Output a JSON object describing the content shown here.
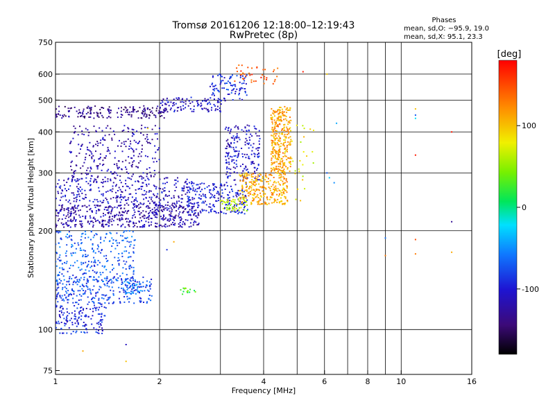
{
  "chart_data": {
    "type": "scatter",
    "title": "Tromsø 20161206 12:18:00–12:19:43",
    "subtitle": "RwPretec (8p)",
    "xlabel": "Frequency [MHz]",
    "ylabel": "Stationary phase Virtual Height [km]",
    "xscale": "log2",
    "yscale": "log",
    "xlim": [
      1,
      16
    ],
    "ylim": [
      73,
      750
    ],
    "xticks": [
      1,
      2,
      4,
      6,
      8,
      10,
      16
    ],
    "xgrid": [
      2,
      3,
      4,
      5,
      6,
      7,
      8,
      9,
      10
    ],
    "yticks": [
      75,
      100,
      200,
      300,
      400,
      500,
      600,
      750
    ],
    "ygrid": [
      100,
      200,
      300,
      400,
      500,
      600
    ],
    "grid": true,
    "phases_box": {
      "heading": "Phases",
      "line_o": "mean, sd,O: −95.9, 19.0",
      "line_x": "mean, sd,X:  95.1, 23.3"
    },
    "colorbar": {
      "label": "[deg]",
      "range": [
        -180,
        180
      ],
      "ticks": [
        100,
        0,
        -100
      ]
    },
    "clusters": [
      {
        "name": "",
        "phase": -135,
        "n": 180,
        "x": [
          1.0,
          2.1
        ],
        "y": [
          440,
          480
        ]
      },
      {
        "name": "",
        "phase": -110,
        "n": 110,
        "x": [
          2.0,
          3.1
        ],
        "y": [
          460,
          510
        ]
      },
      {
        "name": "",
        "phase": -90,
        "n": 90,
        "x": [
          2.8,
          3.6
        ],
        "y": [
          500,
          600
        ]
      },
      {
        "name": "",
        "phase": -120,
        "n": 500,
        "x": [
          1.0,
          2.6
        ],
        "y": [
          205,
          240
        ]
      },
      {
        "name": "",
        "phase": -110,
        "n": 320,
        "x": [
          1.0,
          2.5
        ],
        "y": [
          240,
          290
        ]
      },
      {
        "name": "",
        "phase": -120,
        "n": 260,
        "x": [
          1.1,
          2.0
        ],
        "y": [
          290,
          420
        ]
      },
      {
        "name": "",
        "phase": -100,
        "n": 220,
        "x": [
          2.4,
          3.6
        ],
        "y": [
          225,
          280
        ]
      },
      {
        "name": "",
        "phase": -105,
        "n": 200,
        "x": [
          3.1,
          3.9
        ],
        "y": [
          280,
          420
        ]
      },
      {
        "name": "",
        "phase": 110,
        "n": 280,
        "x": [
          3.4,
          4.7
        ],
        "y": [
          240,
          300
        ]
      },
      {
        "name": "",
        "phase": 115,
        "n": 300,
        "x": [
          4.2,
          4.8
        ],
        "y": [
          300,
          480
        ]
      },
      {
        "name": "",
        "phase": 80,
        "n": 40,
        "x": [
          4.3,
          5.6
        ],
        "y": [
          240,
          420
        ]
      },
      {
        "name": "",
        "phase": 60,
        "n": 50,
        "x": [
          3.0,
          3.6
        ],
        "y": [
          230,
          250
        ]
      },
      {
        "name": "",
        "phase": -70,
        "n": 280,
        "x": [
          1.0,
          1.7
        ],
        "y": [
          140,
          200
        ]
      },
      {
        "name": "",
        "phase": -80,
        "n": 260,
        "x": [
          1.0,
          1.9
        ],
        "y": [
          120,
          145
        ]
      },
      {
        "name": "",
        "phase": -95,
        "n": 150,
        "x": [
          1.0,
          1.4
        ],
        "y": [
          97,
          120
        ]
      },
      {
        "name": "",
        "phase": -60,
        "n": 40,
        "x": [
          1.55,
          1.85
        ],
        "y": [
          128,
          140
        ]
      },
      {
        "name": "",
        "phase": 30,
        "n": 14,
        "x": [
          2.3,
          2.55
        ],
        "y": [
          126,
          134
        ]
      },
      {
        "name": "",
        "phase": 150,
        "n": 40,
        "x": [
          3.3,
          4.4
        ],
        "y": [
          560,
          640
        ]
      }
    ],
    "points": [
      {
        "x": 6.5,
        "y": 425,
        "phase": -40
      },
      {
        "x": 6.1,
        "y": 300,
        "phase": -70
      },
      {
        "x": 6.2,
        "y": 290,
        "phase": -30
      },
      {
        "x": 6.4,
        "y": 280,
        "phase": -50
      },
      {
        "x": 6.1,
        "y": 600,
        "phase": 95
      },
      {
        "x": 11.0,
        "y": 470,
        "phase": 100
      },
      {
        "x": 11.0,
        "y": 450,
        "phase": -70
      },
      {
        "x": 11.0,
        "y": 440,
        "phase": -20
      },
      {
        "x": 11.0,
        "y": 340,
        "phase": 170
      },
      {
        "x": 11.0,
        "y": 188,
        "phase": 150
      },
      {
        "x": 11.0,
        "y": 170,
        "phase": 130
      },
      {
        "x": 14.0,
        "y": 400,
        "phase": 170
      },
      {
        "x": 14.0,
        "y": 213,
        "phase": -130
      },
      {
        "x": 14.0,
        "y": 172,
        "phase": 110
      },
      {
        "x": 9.0,
        "y": 190,
        "phase": -60
      },
      {
        "x": 9.0,
        "y": 168,
        "phase": 130
      },
      {
        "x": 1.85,
        "y": 410,
        "phase": 90
      },
      {
        "x": 2.1,
        "y": 175,
        "phase": -90
      },
      {
        "x": 2.2,
        "y": 185,
        "phase": 110
      },
      {
        "x": 1.6,
        "y": 80,
        "phase": 100
      },
      {
        "x": 1.6,
        "y": 90,
        "phase": -110
      },
      {
        "x": 1.2,
        "y": 86,
        "phase": 110
      },
      {
        "x": 5.2,
        "y": 610,
        "phase": 170
      }
    ]
  }
}
